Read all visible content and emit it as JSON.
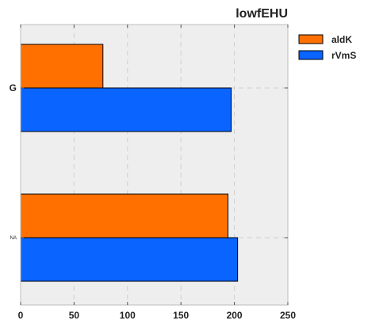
{
  "chart_data": {
    "type": "bar",
    "orientation": "horizontal",
    "title": "lowfEHU",
    "xlabel": "",
    "ylabel": "",
    "categories": [
      "G",
      "NA"
    ],
    "series": [
      {
        "name": "aldK",
        "values": [
          77,
          194
        ],
        "color": "#ff7000"
      },
      {
        "name": "rVmS",
        "values": [
          197,
          203
        ],
        "color": "#0a64ff"
      }
    ],
    "xlim": [
      0,
      250
    ],
    "xticks": [
      "0",
      "50",
      "100",
      "150",
      "200",
      "250"
    ],
    "grid": true,
    "legend_position": "top-right-outside",
    "plot_background": "#eeeeee"
  }
}
